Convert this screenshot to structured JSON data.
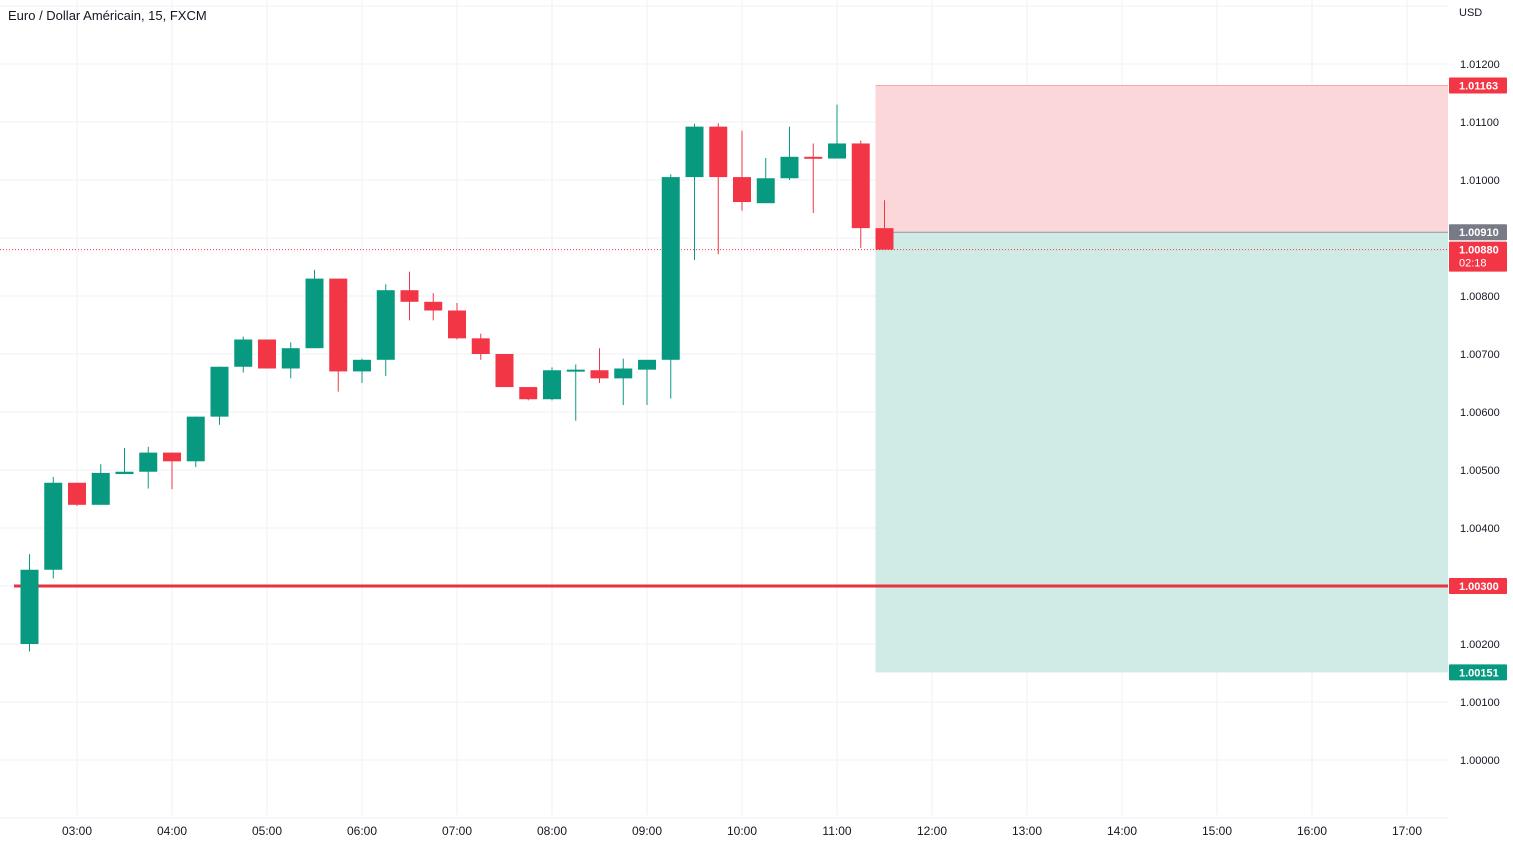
{
  "chart_title": "Euro / Dollar Américain, 15, FXCM",
  "currency_label": "USD",
  "colors": {
    "up": "#089981",
    "down": "#f23645",
    "stop_zone": "#fbd7da",
    "target_zone": "#d0ebe5",
    "support_line": "#e8323f",
    "gray_tag": "#787b86"
  },
  "chart_data": {
    "type": "candlestick",
    "symbol": "EURUSD",
    "interval": "15",
    "source": "FXCM",
    "ylim": [
      0.9993,
      1.0134
    ],
    "x_time_range": [
      "02:30",
      "17:30"
    ],
    "x_ticks": [
      "03:00",
      "04:00",
      "05:00",
      "06:00",
      "07:00",
      "08:00",
      "09:00",
      "10:00",
      "11:00",
      "12:00",
      "13:00",
      "14:00",
      "15:00",
      "16:00",
      "17:00"
    ],
    "y_ticks": [
      "1.00000",
      "1.00100",
      "1.00200",
      "1.00400",
      "1.00500",
      "1.00600",
      "1.00700",
      "1.00800",
      "1.01000",
      "1.01100",
      "1.01200"
    ],
    "candles": [
      {
        "t": "02:30",
        "o": 1.002,
        "h": 1.00355,
        "l": 1.00187,
        "c": 1.00328
      },
      {
        "t": "02:45",
        "o": 1.00328,
        "h": 1.00488,
        "l": 1.00313,
        "c": 1.00478
      },
      {
        "t": "03:00",
        "o": 1.00478,
        "h": 1.00478,
        "l": 1.00438,
        "c": 1.0044
      },
      {
        "t": "03:15",
        "o": 1.0044,
        "h": 1.0051,
        "l": 1.0044,
        "c": 1.00495
      },
      {
        "t": "03:30",
        "o": 1.00493,
        "h": 1.00538,
        "l": 1.00493,
        "c": 1.00497
      },
      {
        "t": "03:45",
        "o": 1.00497,
        "h": 1.0054,
        "l": 1.00468,
        "c": 1.0053
      },
      {
        "t": "04:00",
        "o": 1.0053,
        "h": 1.0053,
        "l": 1.00467,
        "c": 1.00515
      },
      {
        "t": "04:15",
        "o": 1.00515,
        "h": 1.00592,
        "l": 1.00505,
        "c": 1.00592
      },
      {
        "t": "04:30",
        "o": 1.00592,
        "h": 1.00678,
        "l": 1.00578,
        "c": 1.00678
      },
      {
        "t": "04:45",
        "o": 1.00678,
        "h": 1.0073,
        "l": 1.00668,
        "c": 1.00725
      },
      {
        "t": "05:00",
        "o": 1.00725,
        "h": 1.00725,
        "l": 1.00675,
        "c": 1.00675
      },
      {
        "t": "05:15",
        "o": 1.00675,
        "h": 1.0072,
        "l": 1.00658,
        "c": 1.0071
      },
      {
        "t": "05:30",
        "o": 1.0071,
        "h": 1.00845,
        "l": 1.0071,
        "c": 1.0083
      },
      {
        "t": "05:45",
        "o": 1.0083,
        "h": 1.0083,
        "l": 1.00635,
        "c": 1.0067
      },
      {
        "t": "06:00",
        "o": 1.0067,
        "h": 1.00692,
        "l": 1.0065,
        "c": 1.0069
      },
      {
        "t": "06:15",
        "o": 1.0069,
        "h": 1.0082,
        "l": 1.00662,
        "c": 1.0081
      },
      {
        "t": "06:30",
        "o": 1.0081,
        "h": 1.00842,
        "l": 1.00758,
        "c": 1.0079
      },
      {
        "t": "06:45",
        "o": 1.0079,
        "h": 1.00805,
        "l": 1.00758,
        "c": 1.00775
      },
      {
        "t": "07:00",
        "o": 1.00775,
        "h": 1.00788,
        "l": 1.00725,
        "c": 1.00727
      },
      {
        "t": "07:15",
        "o": 1.00727,
        "h": 1.00735,
        "l": 1.0069,
        "c": 1.007
      },
      {
        "t": "07:30",
        "o": 1.007,
        "h": 1.007,
        "l": 1.00643,
        "c": 1.00643
      },
      {
        "t": "07:45",
        "o": 1.00643,
        "h": 1.00643,
        "l": 1.0062,
        "c": 1.00622
      },
      {
        "t": "08:00",
        "o": 1.00622,
        "h": 1.00677,
        "l": 1.0062,
        "c": 1.00672
      },
      {
        "t": "08:15",
        "o": 1.00673,
        "h": 1.00682,
        "l": 1.00585,
        "c": 1.00673
      },
      {
        "t": "08:30",
        "o": 1.00672,
        "h": 1.0071,
        "l": 1.0065,
        "c": 1.00658
      },
      {
        "t": "08:45",
        "o": 1.00658,
        "h": 1.00692,
        "l": 1.00612,
        "c": 1.00675
      },
      {
        "t": "09:00",
        "o": 1.00673,
        "h": 1.00688,
        "l": 1.00612,
        "c": 1.0069
      },
      {
        "t": "09:15",
        "o": 1.0069,
        "h": 1.0101,
        "l": 1.00623,
        "c": 1.01005
      },
      {
        "t": "09:30",
        "o": 1.01005,
        "h": 1.01097,
        "l": 1.00862,
        "c": 1.01092
      },
      {
        "t": "09:45",
        "o": 1.01092,
        "h": 1.01098,
        "l": 1.00872,
        "c": 1.01005
      },
      {
        "t": "10:00",
        "o": 1.01005,
        "h": 1.01085,
        "l": 1.00947,
        "c": 1.00962
      },
      {
        "t": "10:15",
        "o": 1.0096,
        "h": 1.01038,
        "l": 1.0096,
        "c": 1.01003
      },
      {
        "t": "10:30",
        "o": 1.01003,
        "h": 1.01092,
        "l": 1.01,
        "c": 1.0104
      },
      {
        "t": "10:45",
        "o": 1.0104,
        "h": 1.01063,
        "l": 1.00943,
        "c": 1.01037
      },
      {
        "t": "11:00",
        "o": 1.01037,
        "h": 1.0113,
        "l": 1.01037,
        "c": 1.01063
      },
      {
        "t": "11:15",
        "o": 1.01063,
        "h": 1.01068,
        "l": 1.00883,
        "c": 1.00917
      },
      {
        "t": "11:30",
        "o": 1.00917,
        "h": 1.00965,
        "l": 1.00882,
        "c": 1.0088
      }
    ],
    "position": {
      "side": "short",
      "start_time": "11:30",
      "end_time": "17:30",
      "entry": 1.0091,
      "stop": 1.01163,
      "target": 1.00151
    },
    "last_price": 1.0088,
    "horizontal_line": 1.003,
    "price_tags": [
      {
        "label": "1.01163",
        "value": 1.01163,
        "kind": "stop"
      },
      {
        "label": "1.00910",
        "value": 1.0091,
        "kind": "entry"
      },
      {
        "label": "1.00880",
        "sub": "02:18",
        "value": 1.0088,
        "kind": "last"
      },
      {
        "label": "1.00300",
        "value": 1.003,
        "kind": "line"
      },
      {
        "label": "1.00151",
        "value": 1.00151,
        "kind": "target"
      }
    ]
  }
}
